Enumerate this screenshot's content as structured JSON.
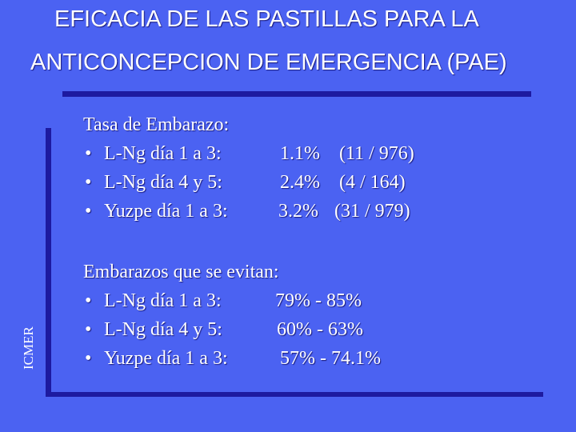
{
  "title": {
    "line1": "EFICACIA DE LAS PASTILLAS PARA LA",
    "line2": "ANTICONCEPCION DE EMERGENCIA  (PAE)"
  },
  "side_label": "ICMER",
  "bullet_glyph": "•",
  "section1": {
    "heading": "Tasa de Embarazo:",
    "rows": [
      {
        "label": "L-Ng día 1 a 3:",
        "rate": "1.1%",
        "count": "(11 / 976)"
      },
      {
        "label": "L-Ng día 4 y 5:",
        "rate": "2.4%",
        "count": "(4 / 164)"
      },
      {
        "label": "Yuzpe día 1 a 3:",
        "rate": "3.2%",
        "count": "(31 / 979)"
      }
    ]
  },
  "section2": {
    "heading": "Embarazos que se evitan:",
    "rows": [
      {
        "label": "L-Ng día 1 a 3:",
        "range": "79% - 85%"
      },
      {
        "label": "L-Ng día 4 y 5:",
        "range": "60% - 63%"
      },
      {
        "label": "Yuzpe día 1 a 3:",
        "range": "57% - 74.1%"
      }
    ]
  },
  "colors": {
    "background": "#4b62f2",
    "rule": "#1d1aa0",
    "text": "#ffffff"
  }
}
